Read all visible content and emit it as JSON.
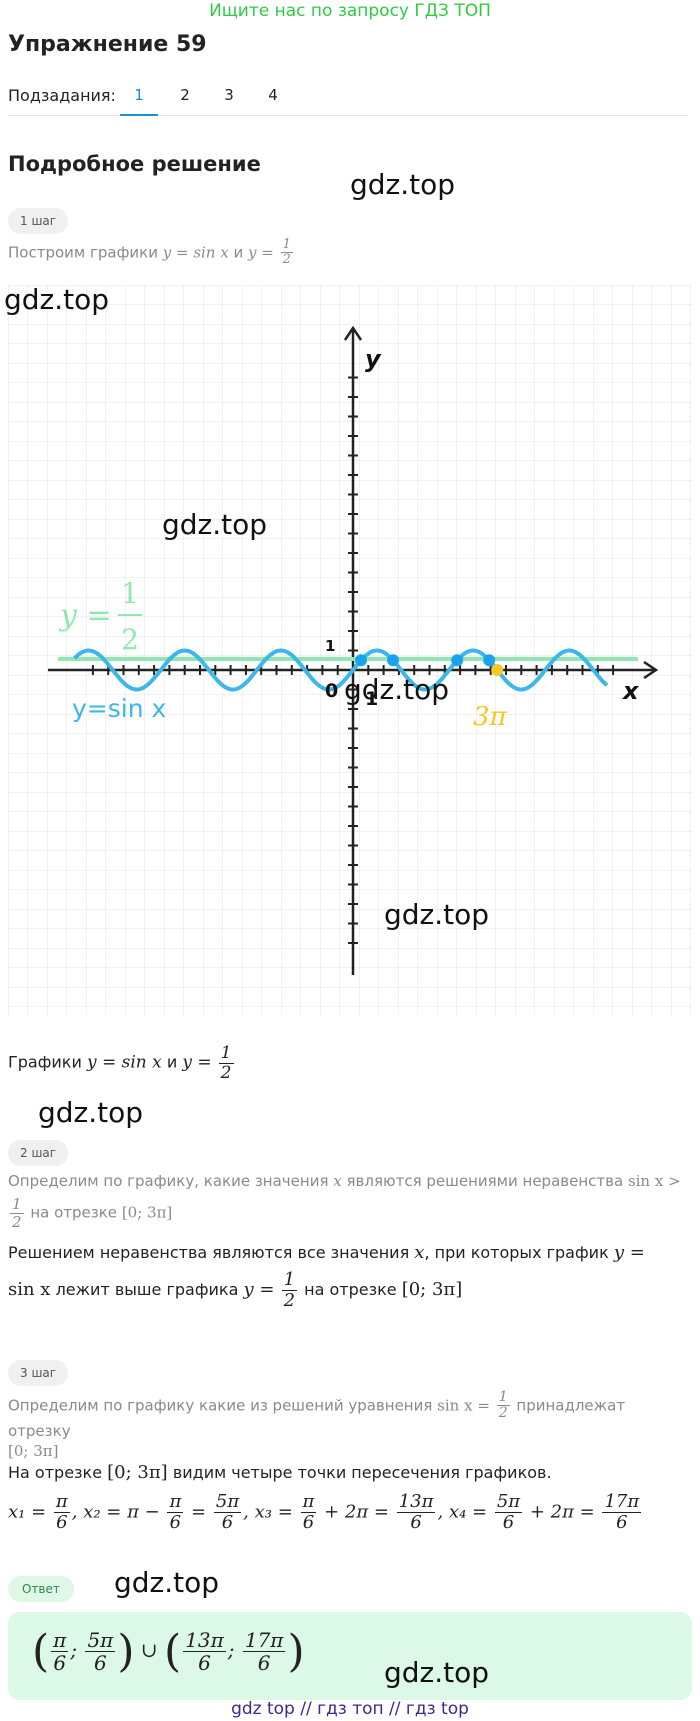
{
  "banner": "Ищите нас по запросу ГДЗ ТОП",
  "title": "Упражнение 59",
  "subtasks": {
    "label": "Подзадания:",
    "tabs": [
      "1",
      "2",
      "3",
      "4"
    ],
    "active": "1"
  },
  "section_title": "Подробное решение",
  "watermark": "gdz.top",
  "step1": {
    "badge": "1 шаг",
    "text_before": "Построим графики",
    "eq1": "y = sin x",
    "and": "и",
    "eq2_lhs": "y =",
    "eq2_num": "1",
    "eq2_den": "2",
    "graph": {
      "y_label": "y",
      "x_label": "x",
      "origin": "0",
      "unit_x": "1",
      "unit_y": "1",
      "line_label_lhs": "y =",
      "line_label_num": "1",
      "line_label_den": "2",
      "sin_label": "y=sin x",
      "three_pi": "3π",
      "sin_color": "#3db6ea",
      "line_color": "#8ee8b0",
      "point_color": "#1aa3ef",
      "three_pi_color": "#f7c81e"
    },
    "caption_before": "Графики",
    "caption_eq1": "y = sin x",
    "caption_and": "и",
    "caption_eq2_lhs": "y =",
    "caption_num": "1",
    "caption_den": "2"
  },
  "step2": {
    "badge": "2 шаг",
    "text_a": "Определим по графику, какие значения",
    "var_x": "x",
    "text_b": "являются решениями неравенства",
    "ineq": "sin x >",
    "ineq_num": "1",
    "ineq_den": "2",
    "text_c": "на отрезке",
    "interval": "[0; 3π]",
    "sol_a": "Решением неравенства являются все значения",
    "sol_x": "x",
    "sol_b": ", при которых график",
    "sol_y": "y =",
    "sol_sin": "sin x",
    "sol_c": "лежит выше графика",
    "sol_eq_lhs": "y =",
    "sol_num": "1",
    "sol_den": "2",
    "sol_d": "на отрезке",
    "sol_interval": "[0; 3π]"
  },
  "step3": {
    "badge": "3 шаг",
    "text_a": "Определим по графику какие из решений уравнения",
    "eq": "sin x =",
    "eq_num": "1",
    "eq_den": "2",
    "text_b": "принадлежат отрезку",
    "interval": "[0; 3π]",
    "result_a": "На отрезке",
    "result_interval": "[0; 3π]",
    "result_b": "видим четыре точки пересечения графиков.",
    "roots": {
      "x1": "x₁ =",
      "x1_num": "π",
      "x1_den": "6",
      "x2": "x₂ = π −",
      "x2_num": "π",
      "x2_den": "6",
      "x2_eq": "=",
      "x2_rnum": "5π",
      "x2_rden": "6",
      "x3": "x₃ =",
      "x3_num": "π",
      "x3_den": "6",
      "x3_plus": "+ 2π =",
      "x3_rnum": "13π",
      "x3_rden": "6",
      "x4": "x₄ =",
      "x4_num": "5π",
      "x4_den": "6",
      "x4_plus": "+ 2π =",
      "x4_rnum": "17π",
      "x4_rden": "6"
    }
  },
  "answer": {
    "badge": "Ответ",
    "a_num": "π",
    "a_den": "6",
    "b_num": "5π",
    "b_den": "6",
    "union": "∪",
    "c_num": "13π",
    "c_den": "6",
    "d_num": "17π",
    "d_den": "6"
  },
  "footer": "gdz top  //  гдз топ  //  гдз top"
}
